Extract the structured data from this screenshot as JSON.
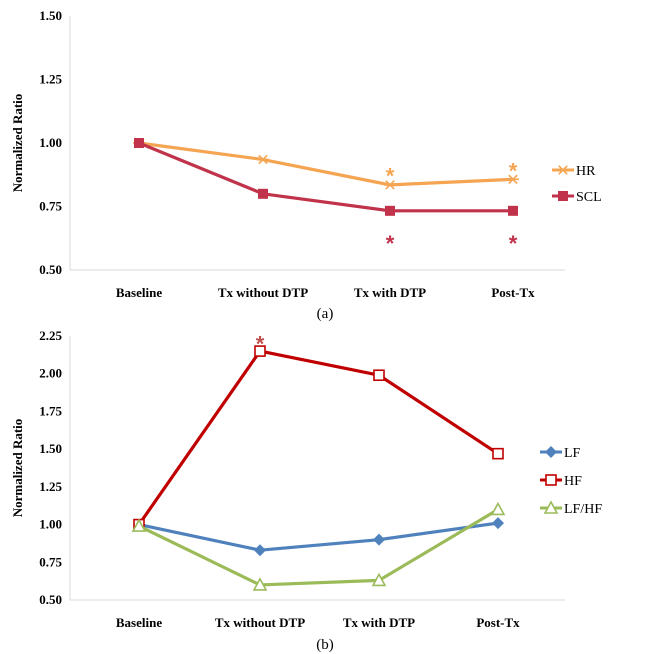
{
  "chart_data": [
    {
      "type": "line",
      "caption": "(a)",
      "categories": [
        "Baseline",
        "Tx without DTP",
        "Tx with DTP",
        "Post-Tx"
      ],
      "ylabel": "Normalized Ratio",
      "xlabel": "",
      "ylim": [
        0.5,
        1.5
      ],
      "yticks": [
        "0.50",
        "0.75",
        "1.00",
        "1.25",
        "1.50"
      ],
      "grid": false,
      "legend_position": "right",
      "series": [
        {
          "name": "HR",
          "marker": "asterisk",
          "color": "#f5a552",
          "values": [
            1.0,
            0.935,
            0.835,
            0.857
          ]
        },
        {
          "name": "SCL",
          "marker": "square",
          "color": "#c0334a",
          "values": [
            1.0,
            0.8,
            0.733,
            0.733
          ]
        }
      ],
      "annotations": [
        {
          "text": "*",
          "category": 2,
          "value": 0.895,
          "color": "#f5a552"
        },
        {
          "text": "*",
          "category": 3,
          "value": 0.915,
          "color": "#f5a552"
        },
        {
          "text": "*",
          "category": 2,
          "value": 0.63,
          "color": "#c0334a"
        },
        {
          "text": "*",
          "category": 3,
          "value": 0.63,
          "color": "#c0334a"
        }
      ]
    },
    {
      "type": "line",
      "caption": "(b)",
      "categories": [
        "Baseline",
        "Tx without DTP",
        "Tx with DTP",
        "Post-Tx"
      ],
      "ylabel": "Normalized Ratio",
      "xlabel": "",
      "ylim": [
        0.5,
        2.25
      ],
      "yticks": [
        "0.50",
        "0.75",
        "1.00",
        "1.25",
        "1.50",
        "1.75",
        "2.00",
        "2.25"
      ],
      "grid": false,
      "legend_position": "right",
      "series": [
        {
          "name": "LF",
          "marker": "diamond",
          "color": "#4f81bd",
          "values": [
            1.0,
            0.83,
            0.9,
            1.01
          ]
        },
        {
          "name": "HF",
          "marker": "square-open",
          "color": "#c00000",
          "values": [
            1.0,
            2.15,
            1.99,
            1.47
          ]
        },
        {
          "name": "LF/HF",
          "marker": "triangle-open",
          "color": "#9bbb59",
          "values": [
            0.99,
            0.6,
            0.63,
            1.1
          ]
        }
      ],
      "annotations": [
        {
          "text": "*",
          "category": 1,
          "value": 2.24,
          "color": "#c0504d"
        }
      ]
    }
  ]
}
